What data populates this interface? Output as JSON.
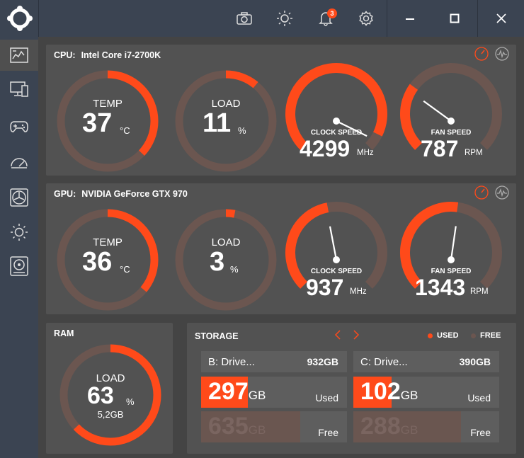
{
  "colors": {
    "accent": "#ff4a1a",
    "track": "#6b5650",
    "panel": "#525252",
    "bg": "#444444",
    "chrome": "#3b4452",
    "free_fill": "#6a5650",
    "free_text": "#7a6560"
  },
  "titlebar": {
    "icons": [
      "camera-icon",
      "brightness-icon",
      "bell-icon",
      "gear-icon"
    ],
    "notification_count": "3",
    "window_controls": [
      "minimize-icon",
      "maximize-icon",
      "close-icon"
    ]
  },
  "sidebar": {
    "items": [
      "dashboard-icon",
      "monitor-icon",
      "gamepad-icon",
      "speedometer-icon",
      "fan-icon",
      "brightness-icon",
      "storage-icon"
    ]
  },
  "cpu": {
    "label": "CPU:",
    "name": "Intel Core i7-2700K",
    "temp": {
      "label": "TEMP",
      "value": "37",
      "unit": "°C",
      "fraction": 0.37
    },
    "load": {
      "label": "LOAD",
      "value": "11",
      "unit": "%",
      "fraction": 0.11
    },
    "clock": {
      "label": "CLOCK SPEED",
      "value": "4299",
      "unit": "MHz",
      "fraction": 0.93
    },
    "fan": {
      "label": "FAN SPEED",
      "value": "787",
      "unit": "RPM",
      "fraction": 0.3
    }
  },
  "gpu": {
    "label": "GPU:",
    "name": "NVIDIA GeForce GTX 970",
    "temp": {
      "label": "TEMP",
      "value": "36",
      "unit": "°C",
      "fraction": 0.36
    },
    "load": {
      "label": "LOAD",
      "value": "3",
      "unit": "%",
      "fraction": 0.03
    },
    "clock": {
      "label": "CLOCK SPEED",
      "value": "937",
      "unit": "MHz",
      "fraction": 0.46
    },
    "fan": {
      "label": "FAN SPEED",
      "value": "1343",
      "unit": "RPM",
      "fraction": 0.53
    }
  },
  "ram": {
    "title": "RAM",
    "label": "LOAD",
    "value": "63",
    "unit": "%",
    "sub": "5,2GB",
    "fraction": 0.63
  },
  "storage": {
    "title": "STORAGE",
    "legend_used": "USED",
    "legend_free": "FREE",
    "drives": [
      {
        "name": "B: Drive...",
        "size": "932GB",
        "used": "297",
        "used_unit": "GB",
        "used_label": "Used",
        "free": "635",
        "free_unit": "GB",
        "free_label": "Free",
        "used_fraction": 0.32
      },
      {
        "name": "C: Drive...",
        "size": "390GB",
        "used": "102",
        "used_unit": "GB",
        "used_label": "Used",
        "free": "288",
        "free_unit": "GB",
        "free_label": "Free",
        "used_fraction": 0.26
      }
    ]
  }
}
